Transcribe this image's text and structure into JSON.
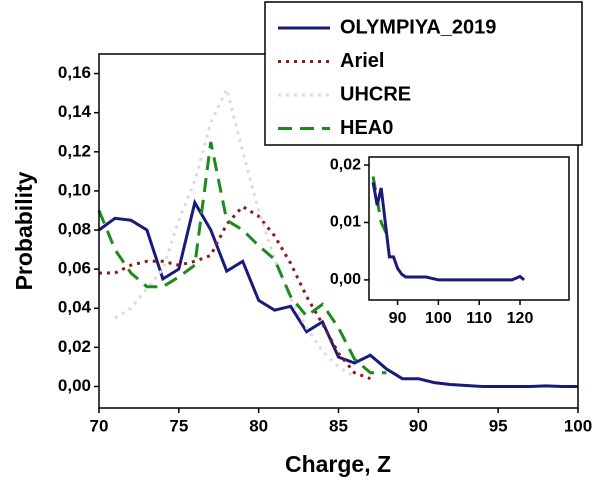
{
  "chart_data": [
    {
      "type": "line",
      "x_label": "Charge,  Z",
      "y_label": "Probability",
      "xlim": [
        70,
        100
      ],
      "xticks": [
        70,
        75,
        80,
        85,
        90,
        95,
        100
      ],
      "ylim": [
        -0.011,
        0.17
      ],
      "yticks": [
        {
          "value": 0,
          "label": "0,00"
        },
        {
          "value": 0.02,
          "label": "0,02"
        },
        {
          "value": 0.04,
          "label": "0,04"
        },
        {
          "value": 0.06,
          "label": "0,06"
        },
        {
          "value": 0.08,
          "label": "0,08"
        },
        {
          "value": 0.1,
          "label": "0,10"
        },
        {
          "value": 0.12,
          "label": "0,12"
        },
        {
          "value": 0.14,
          "label": "0,14"
        },
        {
          "value": 0.16,
          "label": "0,16"
        }
      ],
      "legend": "upper right",
      "series": [
        {
          "name": "OLYMPIYA_2019",
          "color": "#1a1a7a",
          "line_style": "solid",
          "x": [
            70,
            71,
            72,
            73,
            74,
            75,
            76,
            77,
            78,
            79,
            80,
            81,
            82,
            83,
            84,
            85,
            86,
            87,
            88,
            89,
            90,
            91,
            92,
            93,
            94,
            95,
            96,
            97,
            98,
            99,
            100
          ],
          "values": [
            0.08,
            0.086,
            0.085,
            0.08,
            0.055,
            0.06,
            0.094,
            0.08,
            0.059,
            0.064,
            0.044,
            0.039,
            0.041,
            0.028,
            0.033,
            0.015,
            0.012,
            0.016,
            0.009,
            0.004,
            0.004,
            0.002,
            0.001,
            0.0005,
            0,
            0,
            0,
            0,
            0.0003,
            0,
            0
          ]
        },
        {
          "name": "Ariel",
          "color": "#8b1a1a",
          "line_style": "dotted",
          "x": [
            70,
            71,
            72,
            73,
            74,
            75,
            76,
            77,
            78,
            79,
            80,
            81,
            82,
            83,
            84,
            85,
            86,
            87
          ],
          "values": [
            0.058,
            0.058,
            0.062,
            0.064,
            0.064,
            0.062,
            0.064,
            0.067,
            0.083,
            0.092,
            0.087,
            0.077,
            0.063,
            0.046,
            0.032,
            0.017,
            0.007,
            0.004
          ]
        },
        {
          "name": "UHCRE",
          "color": "#dcdcdc",
          "line_style": "dotted",
          "x": [
            71,
            72,
            73,
            74,
            75,
            76,
            77,
            78,
            79,
            80,
            81,
            82,
            83,
            84,
            85,
            86
          ],
          "values": [
            0.035,
            0.04,
            0.05,
            0.06,
            0.085,
            0.105,
            0.135,
            0.152,
            0.12,
            0.09,
            0.065,
            0.045,
            0.03,
            0.018,
            0.01,
            0.005
          ]
        },
        {
          "name": "HEA0",
          "color": "#1e8a1e",
          "line_style": "dashed",
          "x": [
            70,
            71,
            72,
            73,
            74,
            75,
            76,
            77,
            78,
            79,
            80,
            81,
            82,
            83,
            84,
            85,
            86,
            87,
            88
          ],
          "values": [
            0.09,
            0.07,
            0.058,
            0.051,
            0.051,
            0.056,
            0.062,
            0.125,
            0.085,
            0.08,
            0.072,
            0.065,
            0.046,
            0.036,
            0.042,
            0.03,
            0.014,
            0.007,
            0.007
          ]
        }
      ]
    },
    {
      "type": "line",
      "xlim": [
        83,
        132
      ],
      "xticks": [
        90,
        100,
        110,
        120
      ],
      "ylim": [
        -0.0035,
        0.0214
      ],
      "yticks": [
        {
          "value": 0,
          "label": "0,00"
        },
        {
          "value": 0.01,
          "label": "0,01"
        },
        {
          "value": 0.02,
          "label": "0,02"
        }
      ],
      "series": [
        {
          "color": "#1e8a1e",
          "line_style": "dashed",
          "x": [
            84,
            86,
            88
          ],
          "values": [
            0.018,
            0.01,
            0.007
          ]
        },
        {
          "color": "#1a1a7a",
          "line_style": "solid",
          "x": [
            84,
            85,
            86,
            87,
            88,
            89,
            90,
            91,
            92,
            93,
            95,
            97,
            100,
            105,
            110,
            115,
            118,
            119,
            120,
            121
          ],
          "values": [
            0.017,
            0.013,
            0.016,
            0.01,
            0.004,
            0.004,
            0.002,
            0.001,
            0.0005,
            0.0005,
            0.0005,
            0.0005,
            0,
            0,
            0,
            0,
            0,
            0.0003,
            0.0006,
            0
          ]
        }
      ]
    }
  ]
}
